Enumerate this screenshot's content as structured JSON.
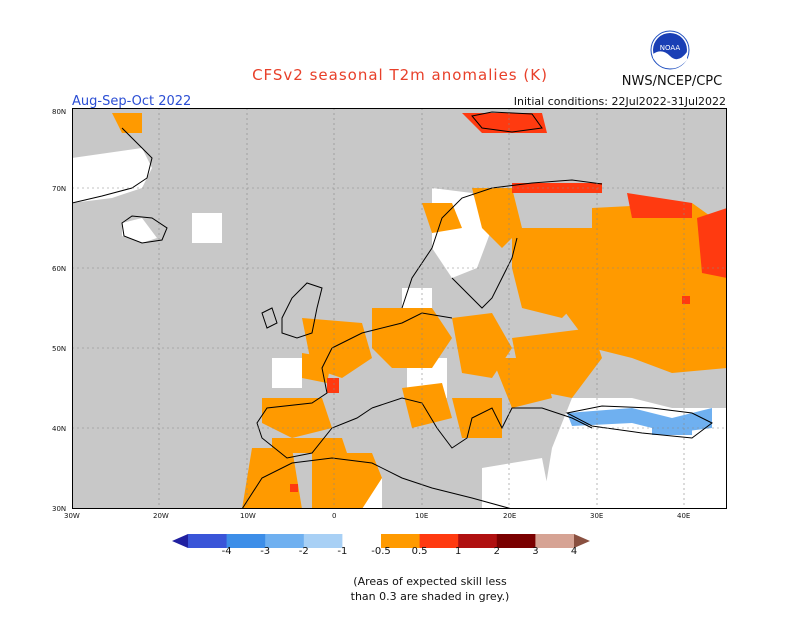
{
  "title": "CFSv2 seasonal T2m anomalies (K)",
  "organization": "NWS/NCEP/CPC",
  "logo_text": "NOAA",
  "season": "Aug-Sep-Oct 2022",
  "initial_conditions": "Initial conditions: 22Jul2022-31Jul2022",
  "lat_labels": [
    "80N",
    "70N",
    "60N",
    "50N",
    "40N",
    "30N"
  ],
  "lon_labels": [
    "30W",
    "20W",
    "10W",
    "0",
    "10E",
    "20E",
    "30E",
    "40E"
  ],
  "colorbar": {
    "labels": [
      "-4",
      "-3",
      "-2",
      "-1",
      "-0.5",
      "0.5",
      "1",
      "2",
      "3",
      "4"
    ],
    "colors": [
      "#2020a0",
      "#3a55d8",
      "#3d8ee8",
      "#6fb0f0",
      "#a8d0f5",
      "#ffffff",
      "#ff9a00",
      "#ff3a10",
      "#b01010",
      "#7a0000",
      "#d6a394",
      "#8a5040"
    ]
  },
  "note_line1": "(Areas of expected skill less",
  "note_line2": "than 0.3 are shaded in grey.)",
  "colors": {
    "grey_low_skill": "#c8c8c8",
    "orange_0_5_1": "#ff9a00",
    "red_1_2": "#ff3a10",
    "light_blue": "#6fb0f0"
  }
}
